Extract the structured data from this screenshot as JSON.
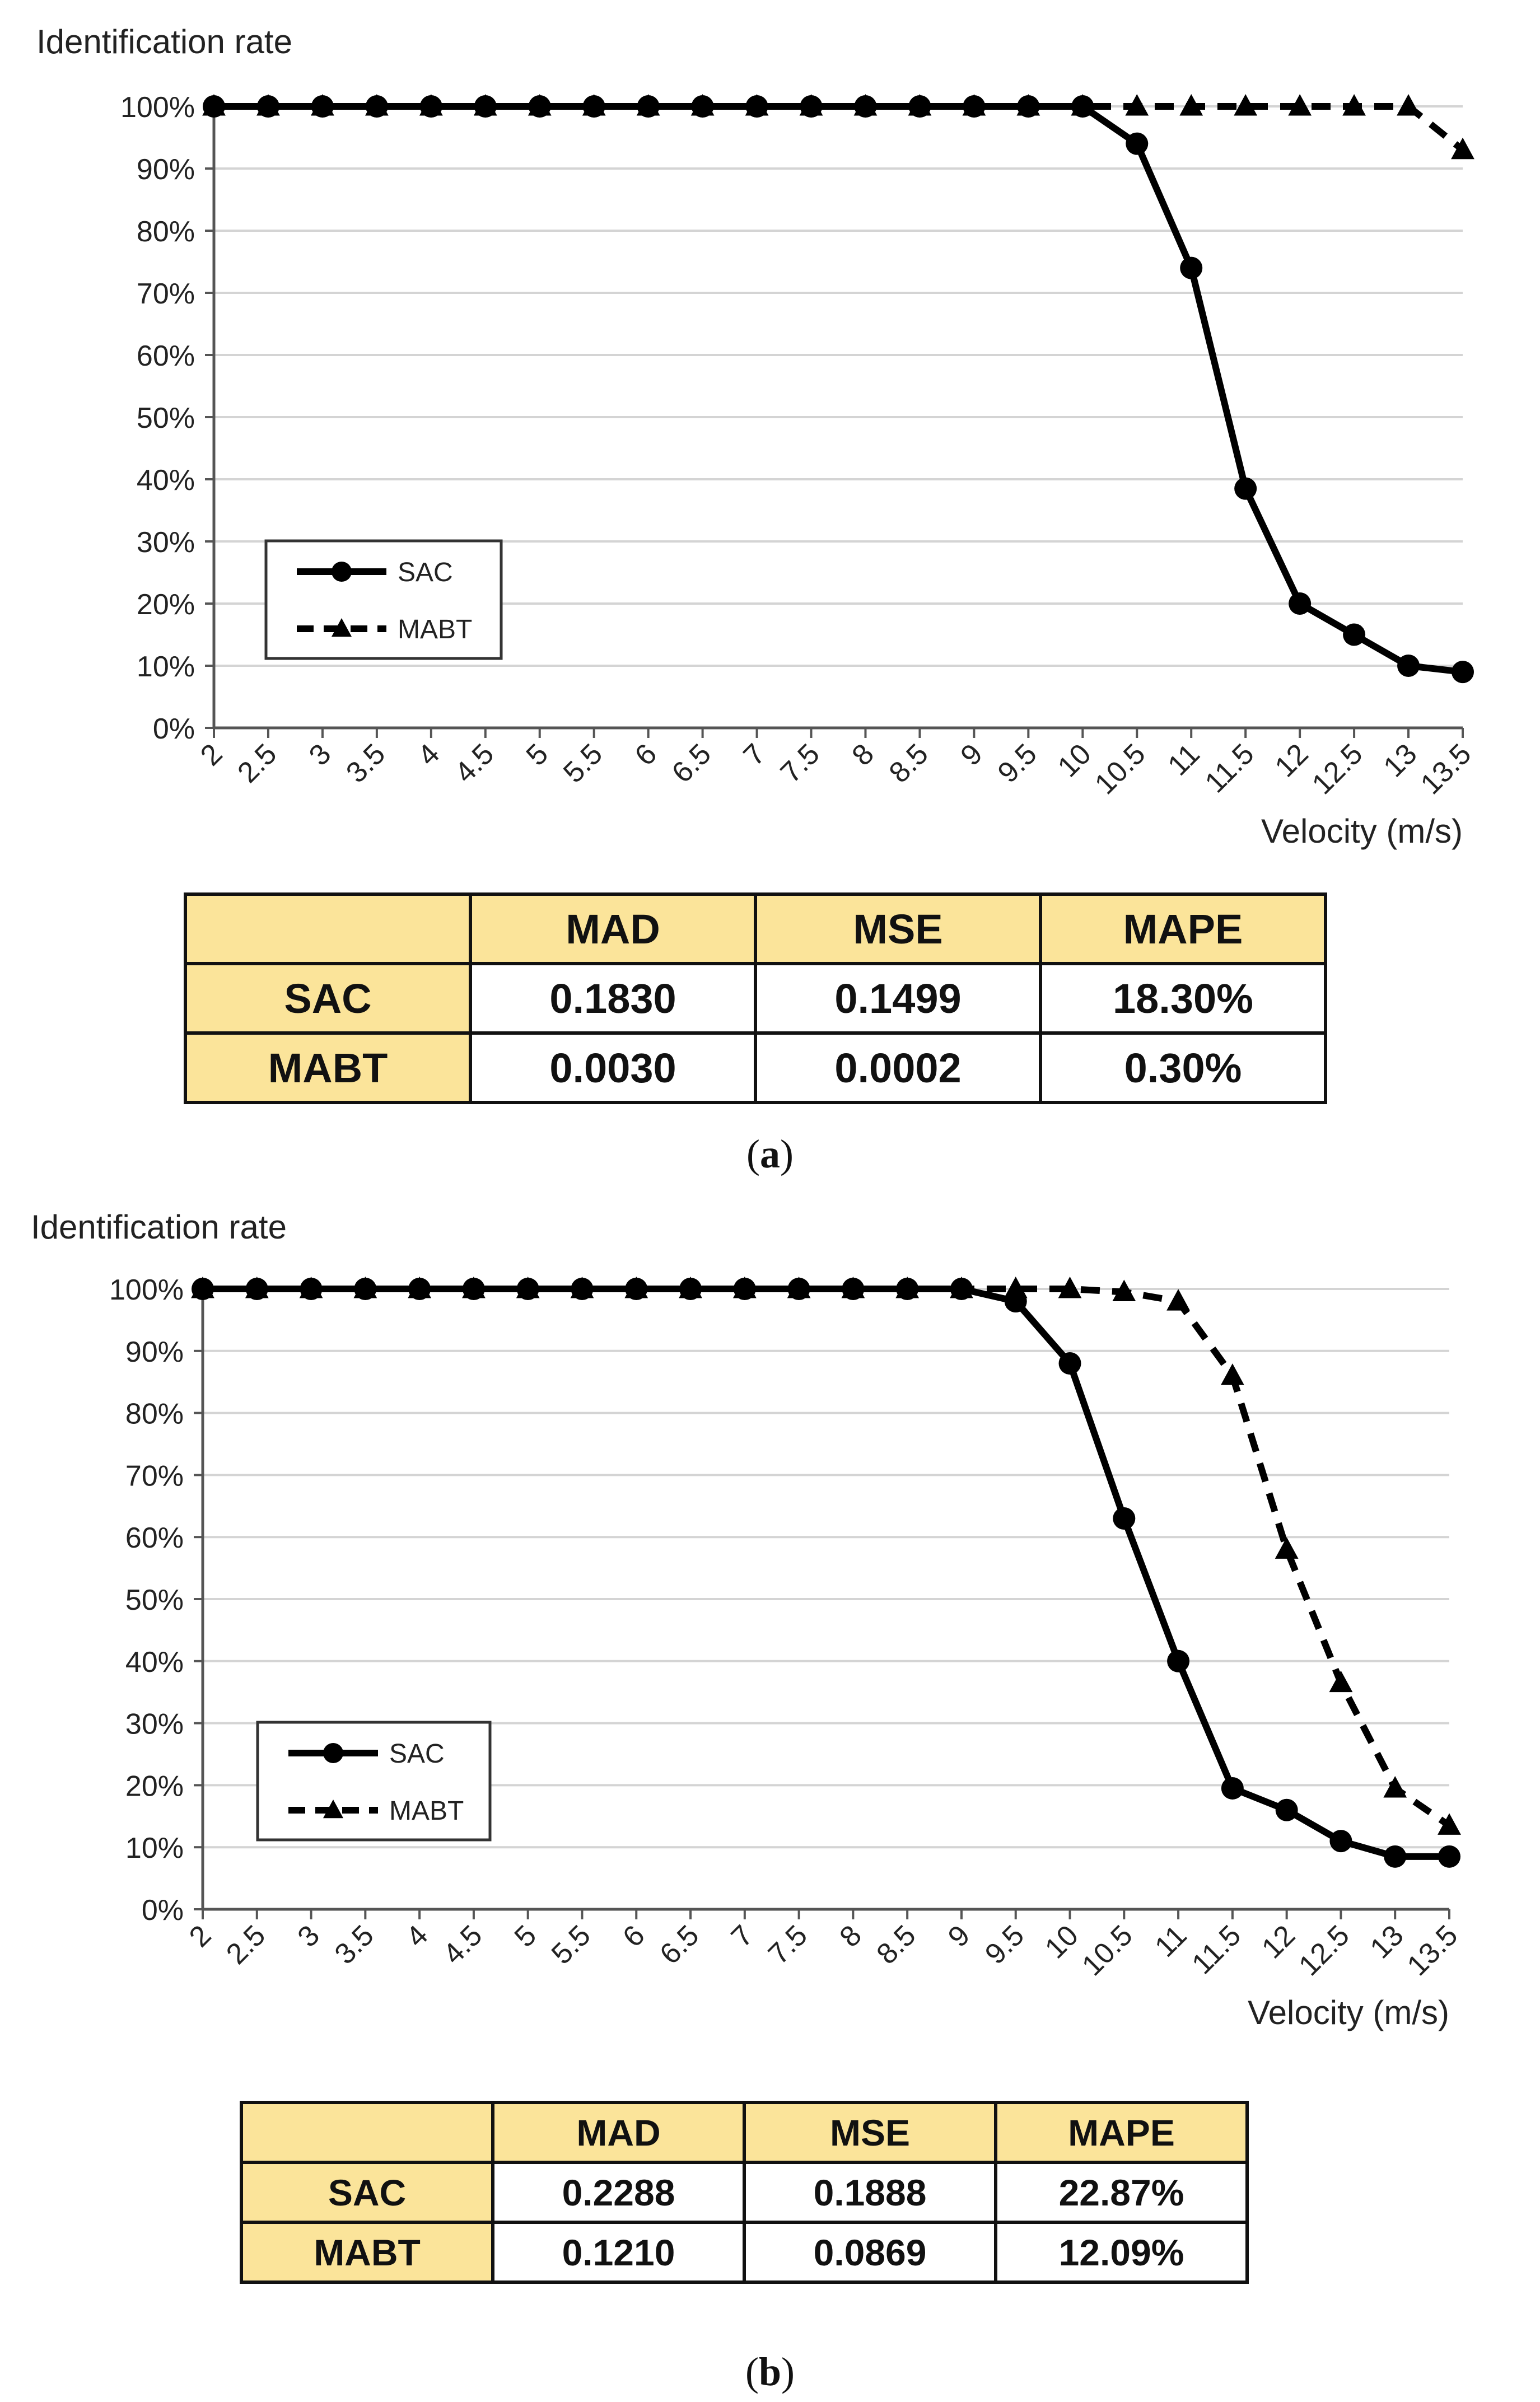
{
  "chart_data": [
    {
      "type": "line",
      "panel": "a",
      "ylabel": "Identification rate",
      "xlabel": "Velocity (m/s)",
      "ylim": [
        0,
        100
      ],
      "yticks": [
        "0%",
        "10%",
        "20%",
        "30%",
        "40%",
        "50%",
        "60%",
        "70%",
        "80%",
        "90%",
        "100%"
      ],
      "categories": [
        "2",
        "2.5",
        "3",
        "3.5",
        "4",
        "4.5",
        "5",
        "5.5",
        "6",
        "6.5",
        "7",
        "7.5",
        "8",
        "8.5",
        "9",
        "9.5",
        "10",
        "10.5",
        "11",
        "11.5",
        "12",
        "12.5",
        "13",
        "13.5"
      ],
      "grid": true,
      "legend_position": "bottom-left",
      "series": [
        {
          "name": "SAC",
          "style": "solid",
          "marker": "circle",
          "values": [
            100,
            100,
            100,
            100,
            100,
            100,
            100,
            100,
            100,
            100,
            100,
            100,
            100,
            100,
            100,
            100,
            100,
            94,
            74,
            38.5,
            20,
            15,
            10,
            9
          ]
        },
        {
          "name": "MABT",
          "style": "dashed",
          "marker": "triangle",
          "values": [
            100,
            100,
            100,
            100,
            100,
            100,
            100,
            100,
            100,
            100,
            100,
            100,
            100,
            100,
            100,
            100,
            100,
            100,
            100,
            100,
            100,
            100,
            100,
            93
          ]
        }
      ]
    },
    {
      "type": "line",
      "panel": "b",
      "ylabel": "Identification rate",
      "xlabel": "Velocity (m/s)",
      "ylim": [
        0,
        100
      ],
      "yticks": [
        "0%",
        "10%",
        "20%",
        "30%",
        "40%",
        "50%",
        "60%",
        "70%",
        "80%",
        "90%",
        "100%"
      ],
      "categories": [
        "2",
        "2.5",
        "3",
        "3.5",
        "4",
        "4.5",
        "5",
        "5.5",
        "6",
        "6.5",
        "7",
        "7.5",
        "8",
        "8.5",
        "9",
        "9.5",
        "10",
        "10.5",
        "11",
        "11.5",
        "12",
        "12.5",
        "13",
        "13.5"
      ],
      "grid": true,
      "legend_position": "bottom-left",
      "series": [
        {
          "name": "SAC",
          "style": "solid",
          "marker": "circle",
          "values": [
            100,
            100,
            100,
            100,
            100,
            100,
            100,
            100,
            100,
            100,
            100,
            100,
            100,
            100,
            100,
            98,
            88,
            63,
            40,
            19.5,
            16,
            11,
            8.5,
            8.5
          ]
        },
        {
          "name": "MABT",
          "style": "dashed",
          "marker": "triangle",
          "values": [
            100,
            100,
            100,
            100,
            100,
            100,
            100,
            100,
            100,
            100,
            100,
            100,
            100,
            100,
            100,
            100,
            100,
            99.5,
            98,
            86,
            58,
            36.5,
            19.5,
            13.5
          ]
        }
      ]
    }
  ],
  "tables": {
    "a": {
      "header": [
        "",
        "MAD",
        "MSE",
        "MAPE"
      ],
      "rows": [
        {
          "label": "SAC",
          "values": [
            "0.1830",
            "0.1499",
            "18.30%"
          ]
        },
        {
          "label": "MABT",
          "values": [
            "0.0030",
            "0.0002",
            "0.30%"
          ]
        }
      ]
    },
    "b": {
      "header": [
        "",
        "MAD",
        "MSE",
        "MAPE"
      ],
      "rows": [
        {
          "label": "SAC",
          "values": [
            "0.2288",
            "0.1888",
            "22.87%"
          ]
        },
        {
          "label": "MABT",
          "values": [
            "0.1210",
            "0.0869",
            "12.09%"
          ]
        }
      ]
    }
  },
  "captions": {
    "a": "a",
    "b": "b"
  }
}
